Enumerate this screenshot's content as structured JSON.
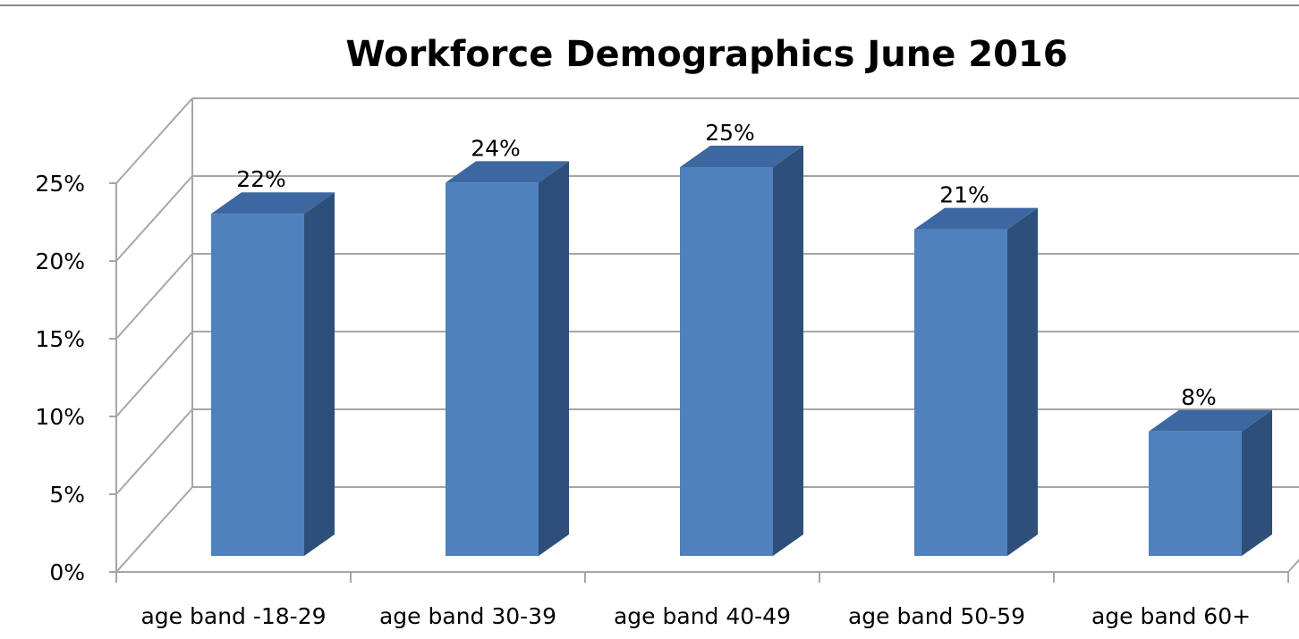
{
  "chart_data": {
    "type": "bar",
    "title": "Workforce Demographics June 2016",
    "categories": [
      "age band -18-29",
      "age band 30-39",
      "age band 40-49",
      "age band 50-59",
      "age band 60+"
    ],
    "values": [
      22,
      24,
      25,
      21,
      8
    ],
    "data_labels": [
      "22%",
      "24%",
      "25%",
      "21%",
      "8%"
    ],
    "y_ticks": [
      0,
      5,
      10,
      15,
      20,
      25
    ],
    "y_tick_labels": [
      "0%",
      "5%",
      "10%",
      "15%",
      "20%",
      "25%"
    ],
    "ylim": [
      0,
      25
    ],
    "xlabel": "",
    "ylabel": "",
    "grid": true,
    "style": "3d-column",
    "colors": {
      "bar_front": "#4f81bd",
      "bar_top": "#3d67a0",
      "bar_side": "#2e4f7a",
      "grid": "#a6a6a6"
    }
  }
}
